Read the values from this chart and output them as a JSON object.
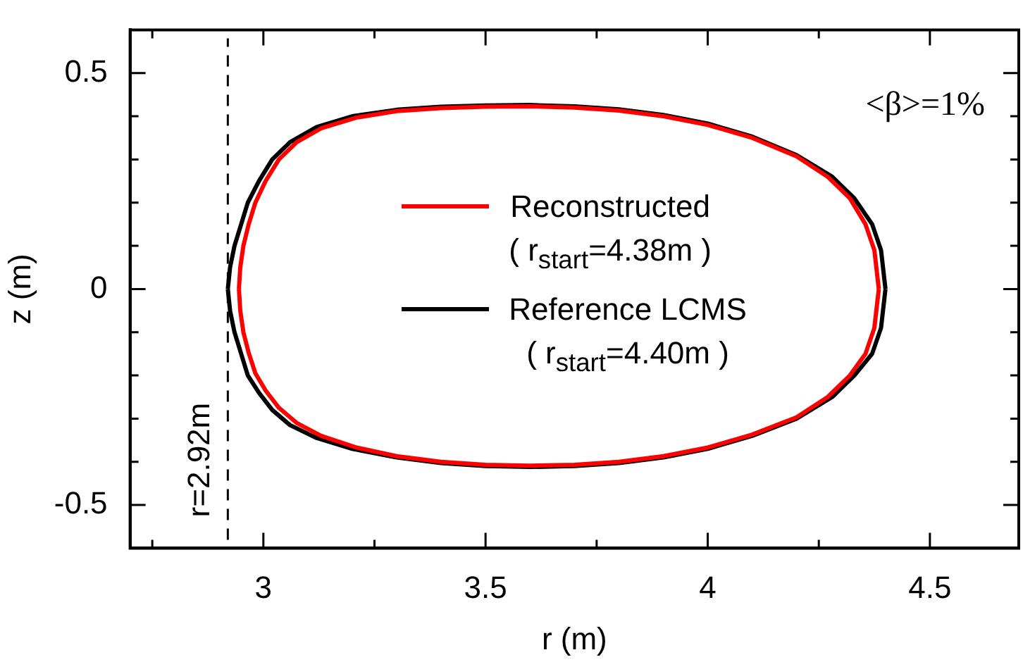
{
  "chart_data": {
    "type": "line",
    "xlabel": "r (m)",
    "ylabel": "z (m)",
    "xlim": [
      2.7,
      4.7
    ],
    "xticks": [
      {
        "value": 2.75,
        "label": null
      },
      3,
      {
        "value": 3.25,
        "label": null
      },
      3.5,
      {
        "value": 3.75,
        "label": null
      },
      4,
      {
        "value": 4.25,
        "label": null
      },
      4.5
    ],
    "ylim": [
      -0.6,
      0.6
    ],
    "yticks": [
      -0.5,
      {
        "value": -0.4,
        "label": null
      },
      {
        "value": -0.3,
        "label": null
      },
      {
        "value": -0.2,
        "label": null
      },
      {
        "value": -0.1,
        "label": null
      },
      0,
      {
        "value": 0.1,
        "label": null
      },
      {
        "value": 0.2,
        "label": null
      },
      {
        "value": 0.3,
        "label": null
      },
      {
        "value": 0.4,
        "label": null
      },
      0.5
    ],
    "legend": "center",
    "marker": "none",
    "line_style": "solid",
    "series": [
      {
        "name": "Reference LCMS\n( r$_{start}$=4.40m )",
        "color": "#000000",
        "x": [
          2.92,
          2.925,
          2.935,
          2.95,
          2.965,
          2.99,
          3.02,
          3.06,
          3.12,
          3.2,
          3.3,
          3.4,
          3.5,
          3.6,
          3.7,
          3.8,
          3.9,
          4.0,
          4.1,
          4.2,
          4.28,
          4.33,
          4.37,
          4.39,
          4.4,
          null,
          2.92,
          2.925,
          2.935,
          2.95,
          2.965,
          2.99,
          3.02,
          3.06,
          3.12,
          3.2,
          3.3,
          3.4,
          3.5,
          3.6,
          3.7,
          3.8,
          3.9,
          4.0,
          4.1,
          4.2,
          4.28,
          4.33,
          4.37,
          4.39,
          4.4
        ],
        "values": [
          0,
          0.05,
          0.1,
          0.15,
          0.2,
          0.25,
          0.3,
          0.34,
          0.375,
          0.4,
          0.415,
          0.422,
          0.425,
          0.426,
          0.423,
          0.416,
          0.403,
          0.383,
          0.353,
          0.31,
          0.26,
          0.21,
          0.15,
          0.09,
          0,
          null,
          0,
          -0.05,
          -0.1,
          -0.15,
          -0.2,
          -0.24,
          -0.28,
          -0.315,
          -0.345,
          -0.37,
          -0.39,
          -0.403,
          -0.41,
          -0.412,
          -0.41,
          -0.403,
          -0.39,
          -0.37,
          -0.34,
          -0.3,
          -0.25,
          -0.2,
          -0.15,
          -0.09,
          0
        ]
      },
      {
        "name": "Reconstructed\n( r$_{start}$=4.38m )",
        "color": "#ff0000",
        "x": [
          2.945,
          2.948,
          2.955,
          2.967,
          2.982,
          3.005,
          3.035,
          3.075,
          3.13,
          3.21,
          3.3,
          3.4,
          3.5,
          3.6,
          3.7,
          3.8,
          3.9,
          4.0,
          4.1,
          4.2,
          4.27,
          4.32,
          4.355,
          4.375,
          4.385,
          null,
          2.945,
          2.948,
          2.955,
          2.967,
          2.982,
          3.005,
          3.035,
          3.075,
          3.13,
          3.21,
          3.3,
          3.4,
          3.5,
          3.6,
          3.7,
          3.8,
          3.9,
          4.0,
          4.1,
          4.2,
          4.27,
          4.32,
          4.355,
          4.375,
          4.385
        ],
        "values": [
          0,
          0.05,
          0.1,
          0.15,
          0.2,
          0.25,
          0.3,
          0.34,
          0.372,
          0.397,
          0.412,
          0.419,
          0.422,
          0.423,
          0.42,
          0.413,
          0.4,
          0.38,
          0.35,
          0.307,
          0.26,
          0.21,
          0.15,
          0.09,
          0,
          null,
          0,
          -0.05,
          -0.1,
          -0.148,
          -0.195,
          -0.235,
          -0.275,
          -0.31,
          -0.34,
          -0.367,
          -0.387,
          -0.4,
          -0.407,
          -0.409,
          -0.407,
          -0.4,
          -0.387,
          -0.367,
          -0.337,
          -0.297,
          -0.25,
          -0.2,
          -0.15,
          -0.09,
          0
        ]
      }
    ],
    "ref_lines": [
      {
        "axis": "x",
        "value": 2.92,
        "label": "r=2.92m",
        "line_style": "dashed",
        "color": "#000000"
      }
    ],
    "annotations": [
      "<β>=1%"
    ]
  }
}
